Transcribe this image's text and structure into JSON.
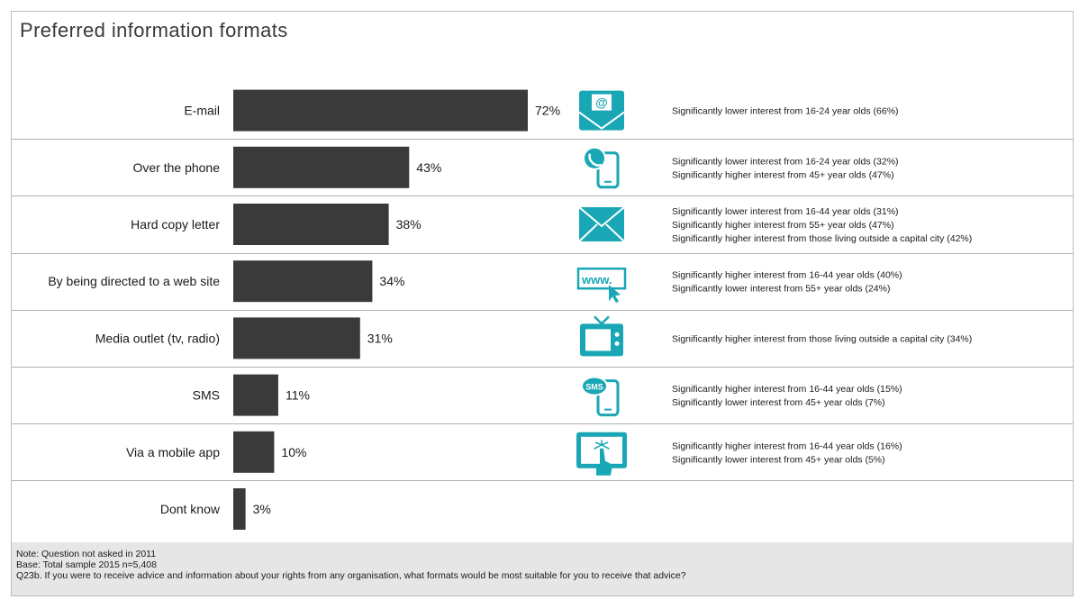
{
  "title": "Preferred information formats",
  "chart_data": {
    "type": "bar",
    "orientation": "horizontal",
    "categories": [
      "E-mail",
      "Over the phone",
      "Hard copy letter",
      "By being directed to a web site",
      "Media outlet (tv, radio)",
      "SMS",
      "Via a mobile app",
      "Dont know"
    ],
    "values": [
      72,
      43,
      38,
      34,
      31,
      11,
      10,
      3
    ],
    "value_labels": [
      "72%",
      "43%",
      "38%",
      "34%",
      "31%",
      "11%",
      "10%",
      "3%"
    ],
    "unit": "%",
    "xlim": [
      0,
      72
    ],
    "bar_color": "#3a3a3a",
    "notes": [
      [
        "Significantly lower interest from 16-24 year olds (66%)"
      ],
      [
        "Significantly lower interest from 16-24 year olds (32%)",
        "Significantly higher interest from 45+ year olds (47%)"
      ],
      [
        "Significantly lower interest from 16-44 year olds (31%)",
        "Significantly higher interest from 55+ year olds (47%)",
        "Significantly higher interest from those living outside a capital city (42%)"
      ],
      [
        "Significantly higher interest from 16-44 year olds (40%)",
        "Significantly lower interest from  55+ year olds (24%)"
      ],
      [
        "Significantly higher interest from those living outside a capital city (34%)"
      ],
      [
        "Significantly higher interest from 16-44 year olds (15%)",
        "Significantly lower interest from  45+ year olds (7%)"
      ],
      [
        "Significantly higher interest from 16-44 year olds (16%)",
        "Significantly lower interest from  45+ year olds (5%)"
      ],
      []
    ],
    "icons": [
      "email-icon",
      "phone-icon",
      "letter-icon",
      "website-icon",
      "tv-icon",
      "sms-icon",
      "tablet-icon",
      ""
    ],
    "icon_color": "#1aa7b5"
  },
  "footer": {
    "note": "Note: Question not asked in 2011",
    "base": "Base: Total sample 2015 n=5,408",
    "question": "Q23b. If you were to receive advice and information about your rights from any organisation, what formats would be most suitable for you to receive that advice?"
  }
}
